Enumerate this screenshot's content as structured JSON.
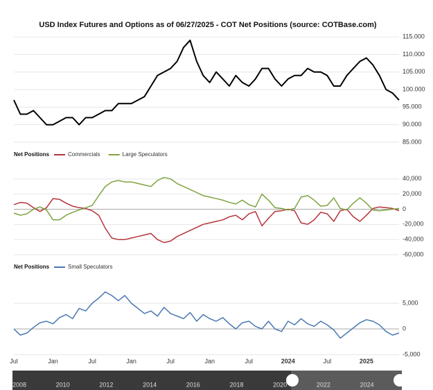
{
  "chart_data": [
    {
      "type": "line",
      "title": "USD Index Futures and Options as of 06/27/2025 - COT Net Positions (source: COTBase.com)",
      "series": [
        {
          "color": "#000000",
          "values": [
            97,
            93,
            93,
            94,
            92,
            90,
            90,
            91,
            92,
            92,
            90,
            92,
            92,
            93,
            94,
            94,
            96,
            96,
            96,
            97,
            98,
            101,
            104,
            105,
            106,
            108,
            112,
            114,
            108,
            104,
            102,
            105,
            103,
            101,
            104,
            102,
            101,
            103,
            106,
            106,
            103,
            101,
            103,
            104,
            104,
            106,
            105,
            105,
            104,
            101,
            101,
            104,
            106,
            108,
            109,
            107,
            104,
            100,
            99,
            97
          ]
        }
      ],
      "ylim": [
        85,
        116
      ],
      "yticks": [
        {
          "value": 85,
          "label": "85.000"
        },
        {
          "value": 90,
          "label": "90.000"
        },
        {
          "value": 95,
          "label": "95.000"
        },
        {
          "value": 100,
          "label": "100.000"
        },
        {
          "value": 105,
          "label": "105.000"
        },
        {
          "value": 110,
          "label": "110.000"
        },
        {
          "value": 115,
          "label": "115.000"
        }
      ]
    },
    {
      "type": "line",
      "legend_title": "Net Positions",
      "series": [
        {
          "name": "Commercials",
          "color": "#b5333a",
          "values": [
            6000,
            9000,
            8000,
            2000,
            -3000,
            2000,
            14000,
            13000,
            8000,
            4000,
            2000,
            1000,
            -2000,
            -8000,
            -25000,
            -38000,
            -40000,
            -40000,
            -38000,
            -36000,
            -34000,
            -32000,
            -40000,
            -44000,
            -42000,
            -36000,
            -32000,
            -28000,
            -24000,
            -20000,
            -18000,
            -16000,
            -14000,
            -10000,
            -8000,
            -14000,
            -6000,
            -3000,
            -22000,
            -12000,
            -3000,
            -2000,
            0,
            -2000,
            -18000,
            -20000,
            -14000,
            -4000,
            -6000,
            -16000,
            -2000,
            0,
            -10000,
            -16000,
            -8000,
            1000,
            3000,
            2000,
            1000,
            -2000
          ]
        },
        {
          "name": "Large Speculators",
          "color": "#7ea33e",
          "values": [
            -5000,
            -8000,
            -6000,
            0,
            3000,
            -1000,
            -14000,
            -14000,
            -8000,
            -4000,
            -1000,
            2000,
            5000,
            18000,
            30000,
            36000,
            38000,
            36000,
            36000,
            34000,
            32000,
            30000,
            38000,
            42000,
            40000,
            34000,
            30000,
            26000,
            22000,
            18000,
            16000,
            14000,
            12000,
            9000,
            7000,
            12000,
            6000,
            3000,
            20000,
            12000,
            2000,
            1000,
            -1000,
            1000,
            16000,
            18000,
            12000,
            4000,
            5000,
            15000,
            1000,
            -1000,
            8000,
            15000,
            8000,
            -1000,
            -2000,
            -1000,
            0,
            1000
          ]
        }
      ],
      "ylim": [
        -60000,
        60000
      ],
      "yticks": [
        {
          "value": -60000,
          "label": "-60,000"
        },
        {
          "value": -40000,
          "label": "-40,000"
        },
        {
          "value": -20000,
          "label": "-20,000"
        },
        0,
        {
          "value": 20000,
          "label": "20,000"
        },
        {
          "value": 40000,
          "label": "40,000"
        }
      ]
    },
    {
      "type": "line",
      "legend_title": "Net Positions",
      "categories": [
        "Jul",
        null,
        null,
        null,
        null,
        null,
        "Jan",
        null,
        null,
        null,
        null,
        null,
        "Jul",
        null,
        null,
        null,
        null,
        null,
        "Jan",
        null,
        null,
        null,
        null,
        null,
        "Jul",
        null,
        null,
        null,
        null,
        null,
        "Jan",
        null,
        null,
        null,
        null,
        null,
        "Jul",
        null,
        null,
        null,
        null,
        null,
        "2024",
        null,
        null,
        null,
        null,
        null,
        "Jul",
        null,
        null,
        null,
        null,
        null,
        "2025",
        null,
        null,
        null,
        null,
        null
      ],
      "series": [
        {
          "name": "Small Speculators",
          "color": "#4a78b0",
          "values": [
            0,
            -1200,
            -800,
            300,
            1200,
            1500,
            1000,
            2200,
            2800,
            2000,
            4000,
            3500,
            5000,
            6000,
            7200,
            6500,
            5500,
            6500,
            5000,
            4000,
            3000,
            3500,
            2500,
            4200,
            3000,
            2500,
            2000,
            3200,
            1500,
            2800,
            2000,
            1500,
            2200,
            1000,
            0,
            1200,
            1500,
            500,
            0,
            1500,
            0,
            -500,
            1500,
            800,
            2000,
            1000,
            500,
            1500,
            800,
            -200,
            -1800,
            -800,
            200,
            1200,
            1800,
            1500,
            800,
            -500,
            -1200,
            -800
          ]
        }
      ],
      "ylim": [
        -5000,
        10400
      ],
      "yticks": [
        {
          "value": -5000,
          "label": "-5,000"
        },
        0,
        {
          "value": 5000,
          "label": "5,000"
        }
      ]
    }
  ],
  "navigator": {
    "labels": [
      "2008",
      "2010",
      "2012",
      "2014",
      "2016",
      "2018",
      "2020",
      "2022",
      "2024"
    ]
  }
}
